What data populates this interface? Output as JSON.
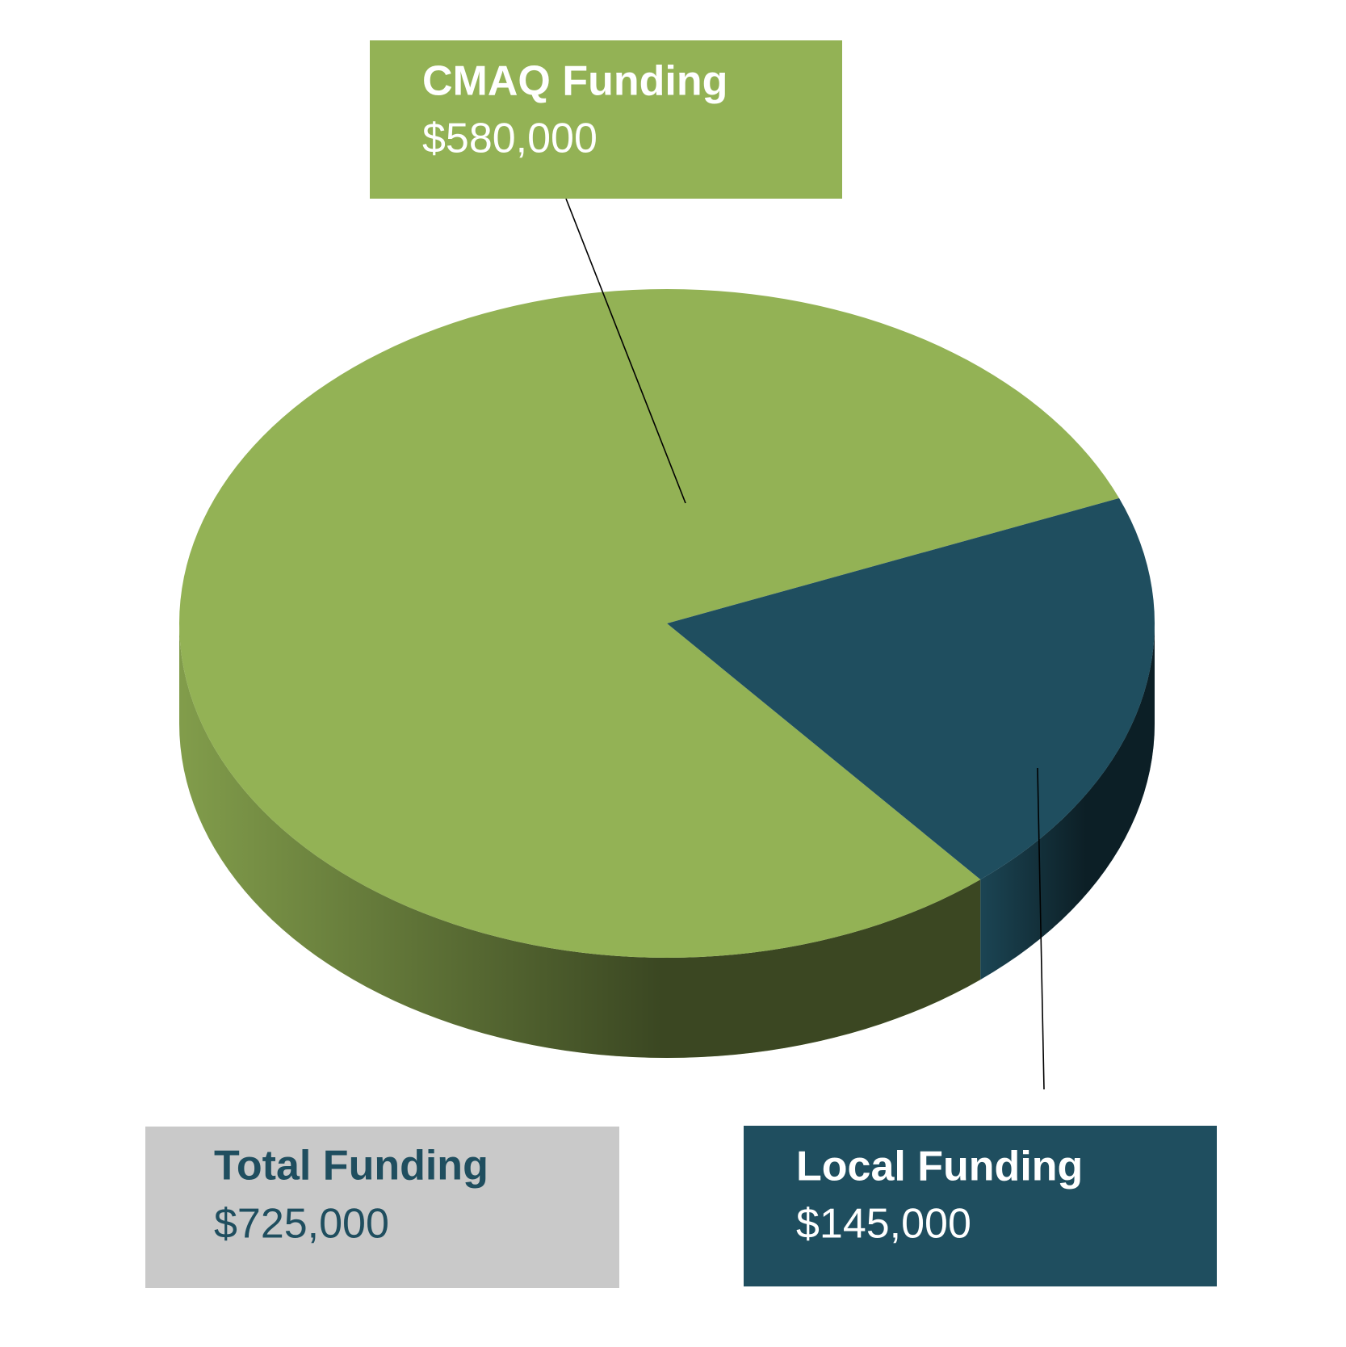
{
  "chart_data": {
    "type": "pie",
    "categories": [
      "CMAQ Funding",
      "Local Funding"
    ],
    "values": [
      580000,
      145000
    ],
    "value_labels": [
      "$580,000",
      "$145,000"
    ],
    "colors": [
      "#93b255",
      "#1f4e5f"
    ],
    "total": {
      "label": "Total Funding",
      "value_label": "$725,000"
    }
  }
}
